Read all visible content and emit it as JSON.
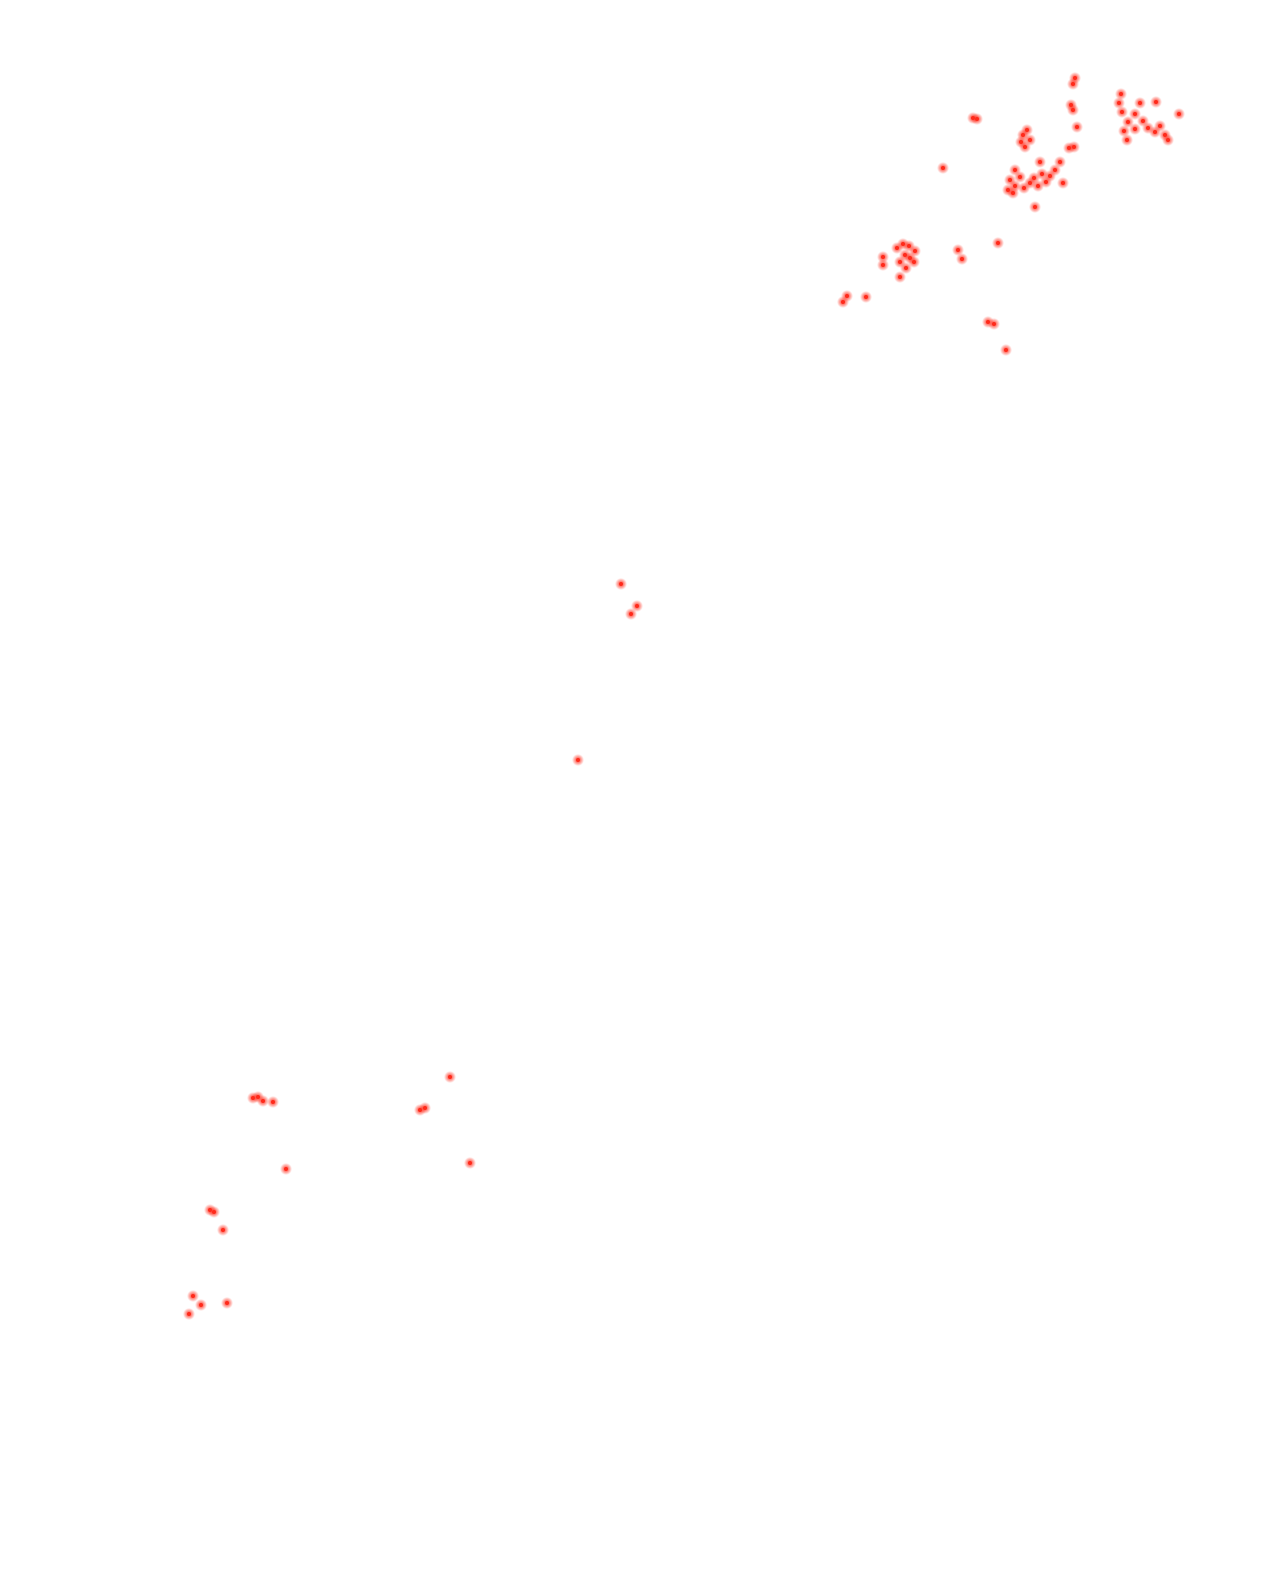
{
  "map": {
    "background_color": "#ffffff",
    "marker_color": "#ff2a1a",
    "marker_glow_color": "#ff9a8f",
    "marker_shape": "circle-dot"
  },
  "legend": null
}
